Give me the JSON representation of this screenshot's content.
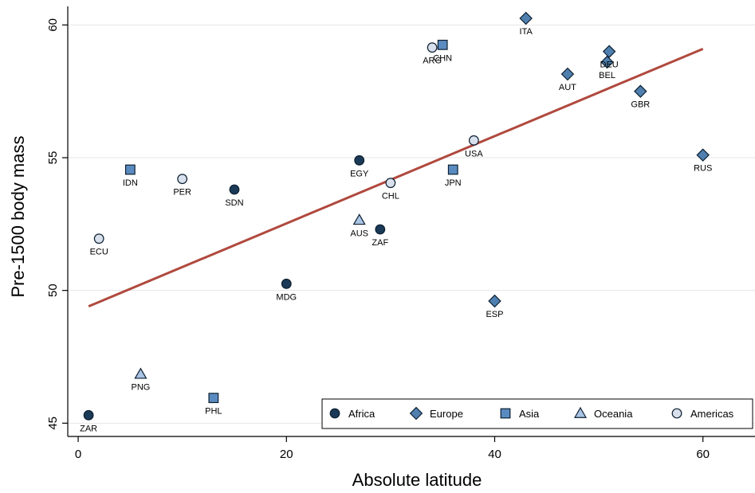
{
  "chart_data": {
    "type": "scatter",
    "xlabel": "Absolute latitude",
    "ylabel": "Pre-1500 body mass",
    "xlim": [
      -1,
      65
    ],
    "ylim": [
      44.5,
      60.7
    ],
    "x_ticks": [
      0,
      20,
      40,
      60
    ],
    "y_ticks": [
      45,
      50,
      55,
      60
    ],
    "grid": "horizontal",
    "legend_position": "bottom-right",
    "colors": {
      "Africa": "#1a3a57",
      "Europe": "#4f7fae",
      "Asia": "#5a8bc0",
      "Oceania": "#a9c4e4",
      "Americas": "#d7e0ec",
      "fit_line": "#b0493e",
      "grid": "#e6e6e6"
    },
    "groups": [
      {
        "name": "Africa",
        "marker": "circle"
      },
      {
        "name": "Europe",
        "marker": "diamond"
      },
      {
        "name": "Asia",
        "marker": "square"
      },
      {
        "name": "Oceania",
        "marker": "triangle"
      },
      {
        "name": "Americas",
        "marker": "circle"
      }
    ],
    "points": [
      {
        "label": "ZAR",
        "x": 1,
        "y": 45.3,
        "group": "Africa"
      },
      {
        "label": "SDN",
        "x": 15,
        "y": 53.8,
        "group": "Africa"
      },
      {
        "label": "MDG",
        "x": 20,
        "y": 50.25,
        "group": "Africa"
      },
      {
        "label": "EGY",
        "x": 27,
        "y": 54.9,
        "group": "Africa"
      },
      {
        "label": "ZAF",
        "x": 29,
        "y": 52.3,
        "group": "Africa"
      },
      {
        "label": "ITA",
        "x": 43,
        "y": 60.25,
        "group": "Europe"
      },
      {
        "label": "AUT",
        "x": 47,
        "y": 58.15,
        "group": "Europe"
      },
      {
        "label": "DEU",
        "x": 51,
        "y": 59.0,
        "group": "Europe"
      },
      {
        "label": "BEL",
        "x": 50.8,
        "y": 58.6,
        "group": "Europe"
      },
      {
        "label": "GBR",
        "x": 54,
        "y": 57.5,
        "group": "Europe"
      },
      {
        "label": "RUS",
        "x": 60,
        "y": 55.1,
        "group": "Europe"
      },
      {
        "label": "ESP",
        "x": 40,
        "y": 49.6,
        "group": "Europe"
      },
      {
        "label": "IDN",
        "x": 5,
        "y": 54.55,
        "group": "Asia"
      },
      {
        "label": "CHN",
        "x": 35,
        "y": 59.25,
        "group": "Asia"
      },
      {
        "label": "JPN",
        "x": 36,
        "y": 54.55,
        "group": "Asia"
      },
      {
        "label": "PHL",
        "x": 13,
        "y": 45.95,
        "group": "Asia"
      },
      {
        "label": "PNG",
        "x": 6,
        "y": 46.85,
        "group": "Oceania"
      },
      {
        "label": "AUS",
        "x": 27,
        "y": 52.65,
        "group": "Oceania"
      },
      {
        "label": "ECU",
        "x": 2,
        "y": 51.95,
        "group": "Americas"
      },
      {
        "label": "PER",
        "x": 10,
        "y": 54.2,
        "group": "Americas"
      },
      {
        "label": "ARG",
        "x": 34,
        "y": 59.15,
        "group": "Americas"
      },
      {
        "label": "CHL",
        "x": 30,
        "y": 54.05,
        "group": "Americas"
      },
      {
        "label": "USA",
        "x": 38,
        "y": 55.65,
        "group": "Americas"
      }
    ],
    "fit_line": {
      "x": [
        1,
        60
      ],
      "y": [
        49.4,
        59.1
      ]
    }
  }
}
